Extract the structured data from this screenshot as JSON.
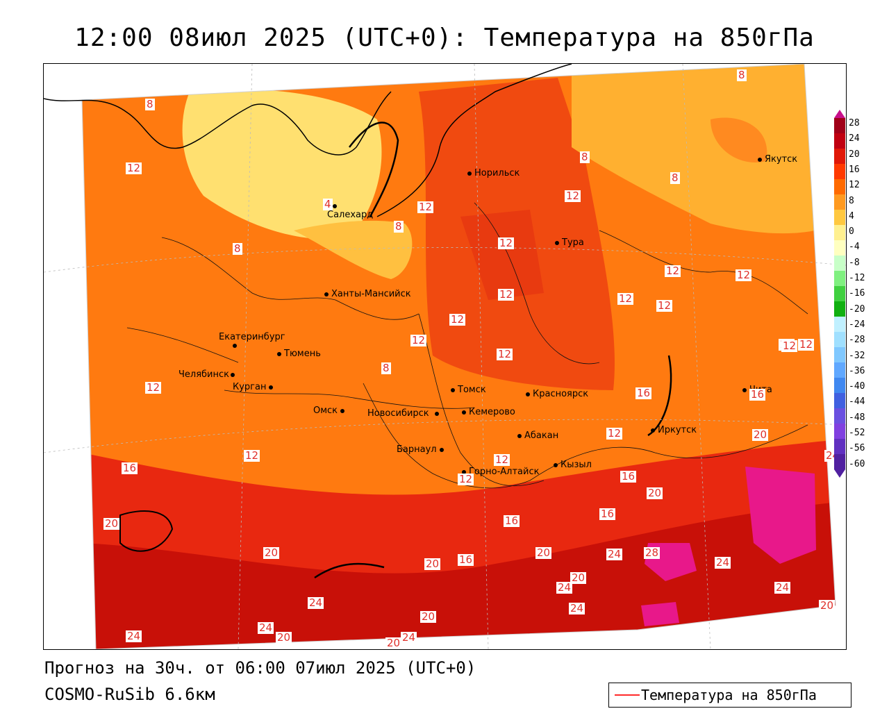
{
  "title": "12:00 08июл 2025 (UTC+0): Температура на 850гПа",
  "footer": {
    "forecast": "Прогноз на 30ч. от 06:00 07июл 2025 (UTC+0)",
    "model": "COSMO-RuSib 6.6км"
  },
  "legend": {
    "label": "Температура на 850гПа",
    "line_color": "#ff2a2a"
  },
  "scale": {
    "labels": [
      "28",
      "24",
      "20",
      "16",
      "12",
      "8",
      "4",
      "0",
      "-4",
      "-8",
      "-12",
      "-16",
      "-20",
      "-24",
      "-28",
      "-32",
      "-36",
      "-40",
      "-44",
      "-48",
      "-52",
      "-56",
      "-60"
    ],
    "colors": [
      "#a00018",
      "#c00010",
      "#e01808",
      "#ff3a00",
      "#ff6a00",
      "#ff9a20",
      "#ffc840",
      "#fff090",
      "#ffffc0",
      "#c8ffc8",
      "#80f080",
      "#40d040",
      "#10b010",
      "#c0f0ff",
      "#a0e0ff",
      "#80c8ff",
      "#60a8ff",
      "#4088f0",
      "#4060e0",
      "#6a50e0",
      "#8040e0",
      "#6030c0",
      "#5020a0"
    ]
  },
  "cities": [
    {
      "name": "Норильск"
    },
    {
      "name": "Якутск"
    },
    {
      "name": "Салехард"
    },
    {
      "name": "Тура"
    },
    {
      "name": "Ханты-Мансийск"
    },
    {
      "name": "Екатеринбург"
    },
    {
      "name": "Тюмень"
    },
    {
      "name": "Челябинск"
    },
    {
      "name": "Курган"
    },
    {
      "name": "Омск"
    },
    {
      "name": "Новосибирск"
    },
    {
      "name": "Томск"
    },
    {
      "name": "Красноярск"
    },
    {
      "name": "Кемерово"
    },
    {
      "name": "Барнаул"
    },
    {
      "name": "Абакан"
    },
    {
      "name": "Горно-Алтайск"
    },
    {
      "name": "Кызыл"
    },
    {
      "name": "Иркутск"
    },
    {
      "name": "Чита"
    }
  ],
  "contour_labels": [
    "8",
    "12",
    "12",
    "4",
    "8",
    "12",
    "8",
    "12",
    "8",
    "12",
    "12",
    "12",
    "12",
    "12",
    "12",
    "12",
    "12",
    "12",
    "8",
    "12",
    "12",
    "16",
    "16",
    "12",
    "12",
    "12",
    "20",
    "24",
    "16",
    "20",
    "20",
    "16",
    "16",
    "16",
    "20",
    "20",
    "16",
    "24",
    "20",
    "24",
    "24",
    "28",
    "20",
    "24",
    "24",
    "20",
    "24",
    "20",
    "24",
    "24",
    "20",
    "20",
    "24",
    "24",
    "8",
    "12",
    "12",
    "8"
  ]
}
